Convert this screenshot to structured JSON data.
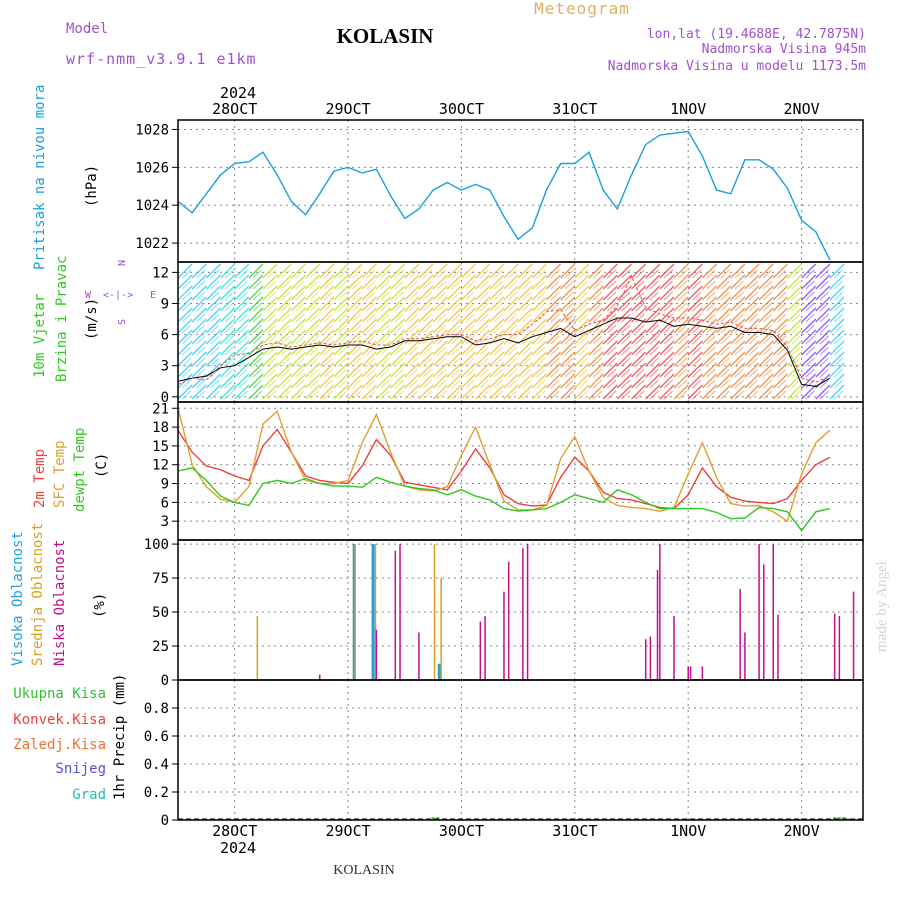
{
  "header": {
    "title": "KOLASIN",
    "subtitle": "Meteogram",
    "model_label": "Model",
    "model_name": "wrf-nmm_v3.9.1 e1km",
    "lonlat": "lon,lat (19.4688E, 42.7875N)",
    "elevation": "Nadmorska Visina 945m",
    "model_elevation": "Nadmorska Visina u modelu 1173.5m",
    "footer": "KOLASIN",
    "credit": "made by Angel",
    "year": "2024"
  },
  "colors": {
    "pressure": "#1aa0e0",
    "temp2m": "#f04040",
    "sfc_temp": "#e0a030",
    "dewpoint": "#30c820",
    "high_cloud": "#20a0e0",
    "mid_cloud": "#d8a020",
    "low_cloud": "#c0108a",
    "precip_total": "#30c030"
  },
  "chart_data": [
    {
      "type": "line",
      "name": "pressure",
      "title": "Pritisak na nivou mora",
      "ylabel": "(hPa)",
      "ylim": [
        1021,
        1028.5
      ],
      "yticks": [
        1022,
        1024,
        1026,
        1028
      ],
      "x_hours_start": 0,
      "x_hours_step": 3,
      "series": [
        {
          "name": "Pritisak na nivou mora",
          "values": [
            1024.2,
            1023.6,
            1024.6,
            1025.6,
            1026.2,
            1026.3,
            1026.8,
            1025.6,
            1024.2,
            1023.5,
            1024.6,
            1025.8,
            1026.0,
            1025.7,
            1025.9,
            1024.5,
            1023.3,
            1023.8,
            1024.8,
            1025.2,
            1024.8,
            1025.1,
            1024.8,
            1023.4,
            1022.2,
            1022.8,
            1024.8,
            1026.2,
            1026.2,
            1026.8,
            1024.8,
            1023.8,
            1025.6,
            1027.2,
            1027.7,
            1027.8,
            1027.9,
            1026.6,
            1024.8,
            1024.6,
            1026.4,
            1026.4,
            1025.9,
            1024.9,
            1023.2,
            1022.6,
            1021.1
          ]
        }
      ]
    },
    {
      "type": "line",
      "name": "wind",
      "title": "10m Vjetar Brzina i Pravac",
      "ylabel": "(m/s)",
      "ylim": [
        -0.5,
        13
      ],
      "yticks": [
        0,
        3,
        6,
        9,
        12
      ],
      "x_hours_start": 0,
      "x_hours_step": 3,
      "compass": [
        "N",
        "W",
        "E",
        "S"
      ],
      "series": [
        {
          "name": "brzina vjetra",
          "values": [
            1.5,
            1.8,
            2.0,
            2.8,
            3.0,
            3.8,
            4.6,
            4.8,
            4.6,
            4.8,
            5.0,
            4.8,
            5.0,
            5.0,
            4.6,
            4.8,
            5.4,
            5.4,
            5.6,
            5.8,
            5.8,
            5.0,
            5.2,
            5.6,
            5.2,
            5.8,
            6.2,
            6.6,
            5.8,
            6.4,
            7.0,
            7.6,
            7.6,
            7.2,
            7.4,
            6.8,
            7.0,
            6.8,
            6.6,
            6.8,
            6.2,
            6.2,
            6.0,
            4.5,
            1.2,
            1.0,
            1.8
          ]
        },
        {
          "name": "udari vjetra",
          "values": [
            1.2,
            1.8,
            1.6,
            3.0,
            4.0,
            4.2,
            5.0,
            5.2,
            4.8,
            5.0,
            5.2,
            5.0,
            5.2,
            5.4,
            5.0,
            5.0,
            5.6,
            5.6,
            5.8,
            6.0,
            6.0,
            5.4,
            5.6,
            6.0,
            6.0,
            7.0,
            8.2,
            8.4,
            6.4,
            7.0,
            7.4,
            8.8,
            11.6,
            8.6,
            8.0,
            7.6,
            7.6,
            7.4,
            7.0,
            7.2,
            6.6,
            6.6,
            6.4,
            4.8,
            1.8,
            1.4,
            2.0
          ]
        }
      ]
    },
    {
      "type": "line",
      "name": "temperature",
      "title": "2m Temp / SFC Temp / dewpt Temp",
      "ylabel": "(C)",
      "ylim": [
        0,
        22
      ],
      "yticks": [
        3,
        6,
        9,
        12,
        15,
        18,
        21
      ],
      "x_hours_start": 0,
      "x_hours_step": 3,
      "series": [
        {
          "name": "2m Temp",
          "values": [
            17.5,
            14.0,
            11.8,
            11.2,
            10.2,
            9.5,
            15.0,
            17.6,
            14.0,
            10.2,
            9.5,
            9.2,
            9.0,
            11.8,
            16.0,
            13.5,
            9.2,
            8.8,
            8.4,
            8.0,
            11.0,
            14.5,
            11.5,
            7.2,
            5.8,
            5.4,
            5.6,
            10.0,
            13.2,
            11.0,
            7.6,
            6.6,
            6.4,
            5.8,
            5.2,
            5.0,
            7.2,
            11.5,
            8.5,
            6.8,
            6.2,
            6.0,
            5.8,
            6.6,
            9.5,
            12.0,
            13.2
          ]
        },
        {
          "name": "SFC Temp",
          "values": [
            21.0,
            12.0,
            8.5,
            6.5,
            6.0,
            8.5,
            18.5,
            20.5,
            14.0,
            9.5,
            9.0,
            9.0,
            9.5,
            15.5,
            20.0,
            14.0,
            8.6,
            8.0,
            7.8,
            8.5,
            13.5,
            18.0,
            12.0,
            6.2,
            4.8,
            4.8,
            5.5,
            13.0,
            16.5,
            11.0,
            6.8,
            5.5,
            5.2,
            5.0,
            4.6,
            5.2,
            10.5,
            15.5,
            10.0,
            5.8,
            5.4,
            5.5,
            4.5,
            3.0,
            10.5,
            15.5,
            17.5
          ]
        },
        {
          "name": "dewpt Temp",
          "values": [
            11.0,
            11.5,
            9.5,
            7.0,
            6.0,
            5.5,
            9.0,
            9.5,
            9.0,
            9.8,
            9.0,
            8.6,
            8.6,
            8.4,
            10.0,
            9.2,
            8.6,
            8.2,
            8.0,
            7.2,
            8.0,
            7.0,
            6.4,
            5.0,
            4.6,
            4.8,
            5.0,
            6.0,
            7.2,
            6.6,
            6.0,
            8.0,
            7.2,
            6.0,
            5.0,
            5.0,
            5.0,
            5.0,
            4.4,
            3.4,
            3.5,
            5.2,
            5.0,
            4.5,
            1.5,
            4.5,
            5.0
          ]
        }
      ]
    },
    {
      "type": "bar",
      "name": "clouds",
      "title": "Visoka Oblacnost / Srednja Oblacnost / Niska Oblacnost",
      "ylabel": "(%)",
      "ylim": [
        0,
        103
      ],
      "yticks": [
        0,
        25,
        50,
        75,
        100
      ],
      "series": [
        {
          "name": "Visoka Oblacnost",
          "points": [
            [
              37.3,
              100
            ],
            [
              41.3,
              100
            ],
            [
              55.3,
              12
            ]
          ]
        },
        {
          "name": "Srednja Oblacnost",
          "points": [
            [
              16.8,
              47
            ],
            [
              37.5,
              100
            ],
            [
              41.8,
              100
            ],
            [
              54.3,
              100
            ],
            [
              55.7,
              75
            ]
          ]
        },
        {
          "name": "Niska Oblacnost",
          "points": [
            [
              30,
              4
            ],
            [
              42,
              37
            ],
            [
              46,
              95
            ],
            [
              47,
              100
            ],
            [
              51,
              35
            ],
            [
              64,
              43
            ],
            [
              65,
              47
            ],
            [
              69,
              65
            ],
            [
              70,
              87
            ],
            [
              73,
              97
            ],
            [
              74,
              100
            ],
            [
              99,
              30
            ],
            [
              100,
              32
            ],
            [
              101.5,
              81
            ],
            [
              102,
              100
            ],
            [
              105,
              47
            ],
            [
              108,
              10
            ],
            [
              108.5,
              10
            ],
            [
              111,
              10
            ],
            [
              119,
              67
            ],
            [
              120,
              35
            ],
            [
              123,
              100
            ],
            [
              124,
              85
            ],
            [
              126,
              100
            ],
            [
              127,
              48
            ],
            [
              139,
              49
            ],
            [
              140,
              47
            ],
            [
              143,
              65
            ]
          ]
        }
      ]
    },
    {
      "type": "bar",
      "name": "precip",
      "title": "1hr Precip",
      "ylabel": "1hr Precip (mm)",
      "ylim": [
        0,
        1.0
      ],
      "yticks": [
        0,
        0.2,
        0.4,
        0.6,
        0.8
      ],
      "legend": [
        "Ukupna Kisa",
        "Konvek.Kisa",
        "Zaledj.Kisa",
        "Snijeg",
        "Grad"
      ],
      "series": [
        {
          "name": "Ukupna Kisa",
          "points": [
            [
              53,
              0.01
            ],
            [
              54,
              0.02
            ],
            [
              55,
              0.02
            ],
            [
              75,
              0.01
            ],
            [
              77,
              0.01
            ],
            [
              139,
              0.02
            ],
            [
              140,
              0.02
            ],
            [
              141,
              0.02
            ],
            [
              142,
              0.01
            ]
          ]
        }
      ]
    }
  ],
  "x_axis": {
    "labels": [
      "28OCT",
      "29OCT",
      "30OCT",
      "31OCT",
      "1NOV",
      "2NOV"
    ],
    "label_hours": [
      12,
      36,
      60,
      84,
      108,
      132
    ],
    "range_hours": [
      0,
      145
    ]
  }
}
